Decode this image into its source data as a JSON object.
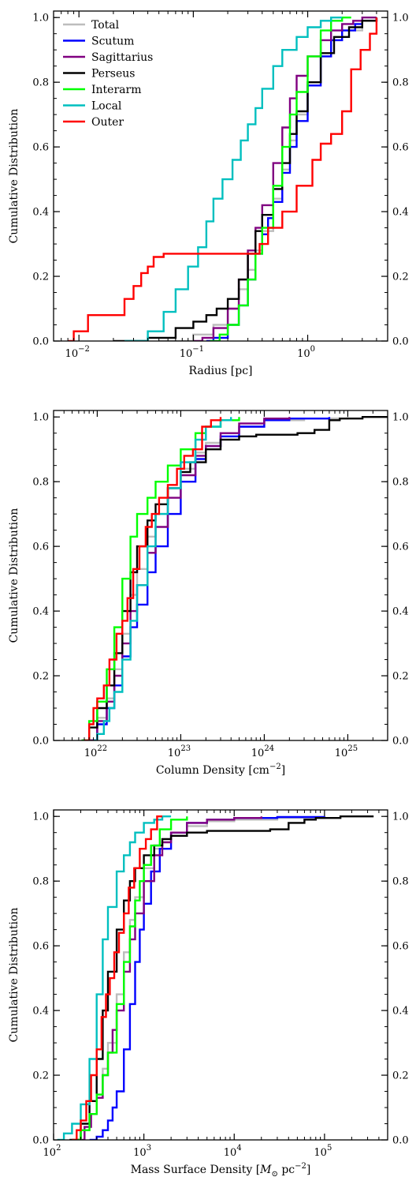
{
  "figure": {
    "ylabel": "Cumulative Distribution",
    "series_colors": {
      "Total": "#bdbdbd",
      "Scutum": "#0000ff",
      "Sagittarius": "#800080",
      "Perseus": "#000000",
      "Interarm": "#00ff00",
      "Local": "#00bfbf",
      "Outer": "#ff0000"
    }
  },
  "chart_data": [
    {
      "type": "line",
      "xlabel": "Radius [pc]",
      "ylabel": "Cumulative Distribution",
      "xscale": "log",
      "xlim": [
        0.006,
        5
      ],
      "ylim": [
        0,
        1.02
      ],
      "x_ticks": [
        {
          "value": 0.01,
          "label": "10",
          "exp": "−2"
        },
        {
          "value": 0.1,
          "label": "10",
          "exp": "−1"
        },
        {
          "value": 1,
          "label": "10",
          "exp": "0"
        }
      ],
      "y_ticks": [
        "0.0",
        "0.2",
        "0.4",
        "0.6",
        "0.8",
        "1.0"
      ],
      "legend": {
        "position": "top-left",
        "entries": [
          "Total",
          "Scutum",
          "Sagittarius",
          "Perseus",
          "Interarm",
          "Local",
          "Outer"
        ]
      },
      "series": [
        {
          "name": "Total",
          "x": [
            0.05,
            0.1,
            0.15,
            0.2,
            0.25,
            0.3,
            0.35,
            0.4,
            0.5,
            0.6,
            0.7,
            0.8,
            1.0,
            1.3,
            1.6,
            2.0,
            3.0,
            4.0
          ],
          "y": [
            0.0,
            0.02,
            0.05,
            0.1,
            0.16,
            0.22,
            0.28,
            0.34,
            0.44,
            0.53,
            0.62,
            0.7,
            0.8,
            0.88,
            0.93,
            0.96,
            0.99,
            1.0
          ]
        },
        {
          "name": "Scutum",
          "x": [
            0.13,
            0.15,
            0.2,
            0.25,
            0.3,
            0.35,
            0.4,
            0.45,
            0.5,
            0.6,
            0.7,
            0.8,
            1.0,
            1.3,
            1.6,
            2.0,
            2.6,
            3.0,
            4.0
          ],
          "y": [
            0.0,
            0.01,
            0.05,
            0.11,
            0.19,
            0.27,
            0.33,
            0.38,
            0.43,
            0.52,
            0.6,
            0.68,
            0.79,
            0.88,
            0.93,
            0.96,
            0.98,
            0.99,
            1.0
          ]
        },
        {
          "name": "Sagittarius",
          "x": [
            0.1,
            0.12,
            0.15,
            0.2,
            0.25,
            0.3,
            0.35,
            0.4,
            0.5,
            0.6,
            0.7,
            0.8,
            1.0,
            1.3,
            1.6,
            2.0,
            2.5,
            3.0,
            4.0
          ],
          "y": [
            0.0,
            0.01,
            0.04,
            0.1,
            0.19,
            0.28,
            0.35,
            0.42,
            0.55,
            0.66,
            0.75,
            0.82,
            0.88,
            0.93,
            0.96,
            0.98,
            0.99,
            1.0,
            1.0
          ]
        },
        {
          "name": "Perseus",
          "x": [
            0.02,
            0.04,
            0.07,
            0.1,
            0.13,
            0.16,
            0.2,
            0.25,
            0.3,
            0.35,
            0.4,
            0.5,
            0.6,
            0.7,
            0.8,
            1.0,
            1.3,
            1.7,
            2.3,
            3.0,
            4.0
          ],
          "y": [
            0.0,
            0.01,
            0.04,
            0.06,
            0.08,
            0.1,
            0.13,
            0.19,
            0.27,
            0.34,
            0.39,
            0.47,
            0.55,
            0.64,
            0.71,
            0.8,
            0.89,
            0.94,
            0.97,
            0.99,
            1.0
          ]
        },
        {
          "name": "Interarm",
          "x": [
            0.14,
            0.17,
            0.2,
            0.25,
            0.3,
            0.35,
            0.4,
            0.5,
            0.6,
            0.7,
            0.8,
            1.0,
            1.3,
            1.6,
            2.0,
            2.4
          ],
          "y": [
            0.0,
            0.02,
            0.05,
            0.11,
            0.19,
            0.27,
            0.35,
            0.48,
            0.6,
            0.7,
            0.77,
            0.88,
            0.96,
            0.99,
            1.0,
            1.0
          ]
        },
        {
          "name": "Local",
          "x": [
            0.025,
            0.04,
            0.055,
            0.07,
            0.09,
            0.11,
            0.13,
            0.15,
            0.18,
            0.22,
            0.26,
            0.3,
            0.35,
            0.4,
            0.5,
            0.6,
            0.8,
            1.0,
            1.3,
            1.6,
            2.0
          ],
          "y": [
            0.0,
            0.03,
            0.09,
            0.16,
            0.23,
            0.29,
            0.37,
            0.44,
            0.5,
            0.56,
            0.62,
            0.67,
            0.72,
            0.78,
            0.85,
            0.9,
            0.94,
            0.97,
            0.99,
            1.0,
            1.0
          ]
        },
        {
          "name": "Outer",
          "x": [
            0.008,
            0.009,
            0.012,
            0.02,
            0.025,
            0.03,
            0.035,
            0.04,
            0.045,
            0.05,
            0.055,
            0.36,
            0.38,
            0.45,
            0.6,
            0.8,
            1.1,
            1.3,
            1.6,
            2.0,
            2.4,
            2.9,
            3.5,
            4.0
          ],
          "y": [
            0.0,
            0.03,
            0.08,
            0.08,
            0.13,
            0.17,
            0.21,
            0.23,
            0.26,
            0.26,
            0.27,
            0.27,
            0.3,
            0.35,
            0.4,
            0.48,
            0.56,
            0.61,
            0.64,
            0.71,
            0.84,
            0.9,
            0.95,
            1.0
          ]
        }
      ]
    },
    {
      "type": "line",
      "xlabel": "Column Density [cm",
      "xlabel_sup": "−2",
      "xlabel_tail": "]",
      "ylabel": "Cumulative Distribution",
      "xscale": "log",
      "xlim": [
        3e+21,
        3e+25
      ],
      "ylim": [
        0,
        1.02
      ],
      "x_ticks": [
        {
          "value": 1e+22,
          "label": "10",
          "exp": "22"
        },
        {
          "value": 1e+23,
          "label": "10",
          "exp": "23"
        },
        {
          "value": 1e+24,
          "label": "10",
          "exp": "24"
        },
        {
          "value": 1e+25,
          "label": "10",
          "exp": "25"
        }
      ],
      "y_ticks": [
        "0.0",
        "0.2",
        "0.4",
        "0.6",
        "0.8",
        "1.0"
      ],
      "series": [
        {
          "name": "Total",
          "x": [
            7e+21,
            1e+22,
            1.3e+22,
            1.6e+22,
            2e+22,
            2.5e+22,
            3e+22,
            4e+22,
            5e+22,
            7e+22,
            1e+23,
            1.5e+23,
            2e+23,
            3e+23,
            5e+23,
            1e+24,
            3e+24,
            1e+25
          ],
          "y": [
            0.0,
            0.07,
            0.13,
            0.22,
            0.33,
            0.45,
            0.53,
            0.63,
            0.7,
            0.78,
            0.84,
            0.89,
            0.92,
            0.95,
            0.97,
            0.99,
            0.995,
            1.0
          ]
        },
        {
          "name": "Scutum",
          "x": [
            8e+21,
            1e+22,
            1.3e+22,
            1.6e+22,
            2e+22,
            2.5e+22,
            3e+22,
            4e+22,
            5e+22,
            7e+22,
            1e+23,
            1.5e+23,
            2e+23,
            3e+23,
            5e+23,
            1e+24,
            2e+24,
            6e+24
          ],
          "y": [
            0.0,
            0.05,
            0.1,
            0.17,
            0.26,
            0.35,
            0.42,
            0.52,
            0.6,
            0.7,
            0.8,
            0.87,
            0.91,
            0.94,
            0.97,
            0.99,
            0.995,
            1.0
          ]
        },
        {
          "name": "Sagittarius",
          "x": [
            7.5e+21,
            1e+22,
            1.3e+22,
            1.6e+22,
            2e+22,
            2.5e+22,
            3e+22,
            4e+22,
            5e+22,
            7e+22,
            1e+23,
            1.5e+23,
            2e+23,
            3e+23,
            5e+23,
            1e+24,
            2e+24
          ],
          "y": [
            0.0,
            0.06,
            0.12,
            0.2,
            0.3,
            0.4,
            0.48,
            0.58,
            0.66,
            0.75,
            0.82,
            0.88,
            0.91,
            0.95,
            0.98,
            0.995,
            1.0
          ]
        },
        {
          "name": "Perseus",
          "x": [
            6.5e+21,
            8e+21,
            1e+22,
            1.3e+22,
            1.6e+22,
            2e+22,
            2.5e+22,
            3e+22,
            4e+22,
            5e+22,
            7e+22,
            1e+23,
            1.3e+23,
            2e+23,
            3e+23,
            5e+23,
            8e+23,
            1.5e+24,
            2.5e+24,
            4e+24,
            6e+24,
            8e+24,
            1.5e+25,
            3e+25
          ],
          "y": [
            0.0,
            0.04,
            0.1,
            0.17,
            0.27,
            0.4,
            0.52,
            0.6,
            0.68,
            0.73,
            0.78,
            0.83,
            0.86,
            0.9,
            0.93,
            0.94,
            0.945,
            0.945,
            0.95,
            0.96,
            0.99,
            0.995,
            1.0,
            1.0
          ]
        },
        {
          "name": "Interarm",
          "x": [
            6.5e+21,
            8e+21,
            1e+22,
            1.3e+22,
            1.6e+22,
            2e+22,
            2.5e+22,
            3e+22,
            4e+22,
            5e+22,
            7e+22,
            1e+23,
            1.5e+23,
            2e+23,
            3e+23,
            5e+23
          ],
          "y": [
            0.0,
            0.06,
            0.12,
            0.22,
            0.35,
            0.5,
            0.63,
            0.7,
            0.75,
            0.8,
            0.85,
            0.9,
            0.95,
            0.97,
            0.99,
            1.0
          ]
        },
        {
          "name": "Local",
          "x": [
            9e+21,
            1e+22,
            1.2e+22,
            1.4e+22,
            1.6e+22,
            2e+22,
            2.5e+22,
            3e+22,
            4e+22,
            5e+22,
            7e+22,
            1e+23,
            1.5e+23,
            2e+23,
            3e+23,
            4e+23
          ],
          "y": [
            0.0,
            0.02,
            0.06,
            0.1,
            0.15,
            0.25,
            0.37,
            0.48,
            0.6,
            0.7,
            0.78,
            0.86,
            0.93,
            0.97,
            0.99,
            1.0
          ]
        },
        {
          "name": "Outer",
          "x": [
            7e+21,
            8e+21,
            9e+21,
            1e+22,
            1.2e+22,
            1.4e+22,
            1.7e+22,
            2e+22,
            2.3e+22,
            2.7e+22,
            3.2e+22,
            3.8e+22,
            4.5e+22,
            5.5e+22,
            7e+22,
            9e+22,
            1.1e+23,
            1.4e+23,
            1.8e+23,
            2.3e+23,
            3e+23
          ],
          "y": [
            0.0,
            0.05,
            0.1,
            0.13,
            0.17,
            0.25,
            0.33,
            0.37,
            0.44,
            0.53,
            0.6,
            0.66,
            0.7,
            0.75,
            0.79,
            0.84,
            0.88,
            0.9,
            0.97,
            0.99,
            1.0
          ]
        }
      ]
    },
    {
      "type": "line",
      "xlabel": "Mass Surface Density [",
      "xlabel_math": "M",
      "xlabel_sub": "⊙",
      "xlabel_unit": " pc",
      "xlabel_sup": "−2",
      "xlabel_tail": "]",
      "ylabel": "Cumulative Distribution",
      "xscale": "log",
      "xlim": [
        100,
        500000
      ],
      "ylim": [
        0,
        1.02
      ],
      "x_ticks": [
        {
          "value": 100,
          "label": "10",
          "exp": "2"
        },
        {
          "value": 1000,
          "label": "10",
          "exp": "3"
        },
        {
          "value": 10000,
          "label": "10",
          "exp": "4"
        },
        {
          "value": 100000,
          "label": "10",
          "exp": "5"
        }
      ],
      "y_ticks": [
        "0.0",
        "0.2",
        "0.4",
        "0.6",
        "0.8",
        "1.0"
      ],
      "series": [
        {
          "name": "Total",
          "x": [
            160,
            200,
            250,
            300,
            350,
            400,
            500,
            600,
            700,
            800,
            1000,
            1300,
            1600,
            2000,
            3000,
            5000,
            10000,
            30000,
            100000
          ],
          "y": [
            0.0,
            0.03,
            0.08,
            0.14,
            0.22,
            0.3,
            0.45,
            0.58,
            0.68,
            0.75,
            0.84,
            0.9,
            0.93,
            0.95,
            0.97,
            0.985,
            0.99,
            0.995,
            1.0
          ]
        },
        {
          "name": "Scutum",
          "x": [
            250,
            300,
            350,
            400,
            450,
            500,
            600,
            700,
            800,
            900,
            1000,
            1200,
            1500,
            2000,
            3000,
            5000,
            10000,
            30000,
            100000
          ],
          "y": [
            0.0,
            0.01,
            0.03,
            0.06,
            0.1,
            0.15,
            0.28,
            0.42,
            0.55,
            0.65,
            0.73,
            0.83,
            0.9,
            0.95,
            0.98,
            0.99,
            0.995,
            0.998,
            1.0
          ]
        },
        {
          "name": "Sagittarius",
          "x": [
            180,
            220,
            260,
            300,
            350,
            400,
            450,
            500,
            600,
            700,
            800,
            1000,
            1300,
            1600,
            2000,
            3000,
            5000,
            10000,
            20000
          ],
          "y": [
            0.0,
            0.04,
            0.08,
            0.13,
            0.2,
            0.27,
            0.34,
            0.4,
            0.52,
            0.62,
            0.7,
            0.8,
            0.88,
            0.92,
            0.95,
            0.98,
            0.99,
            0.995,
            1.0
          ]
        },
        {
          "name": "Perseus",
          "x": [
            150,
            200,
            250,
            300,
            350,
            400,
            500,
            600,
            700,
            800,
            1000,
            1300,
            1600,
            2000,
            3000,
            5000,
            8000,
            15000,
            25000,
            40000,
            60000,
            80000,
            150000,
            350000
          ],
          "y": [
            0.0,
            0.05,
            0.12,
            0.25,
            0.4,
            0.52,
            0.65,
            0.74,
            0.8,
            0.84,
            0.88,
            0.91,
            0.93,
            0.94,
            0.95,
            0.955,
            0.955,
            0.955,
            0.96,
            0.98,
            0.99,
            0.995,
            1.0,
            1.0
          ]
        },
        {
          "name": "Interarm",
          "x": [
            170,
            200,
            250,
            300,
            350,
            400,
            500,
            600,
            700,
            800,
            900,
            1000,
            1200,
            1500,
            2000,
            3000
          ],
          "y": [
            0.0,
            0.03,
            0.08,
            0.14,
            0.2,
            0.27,
            0.42,
            0.55,
            0.66,
            0.74,
            0.8,
            0.85,
            0.91,
            0.96,
            0.99,
            1.0
          ]
        },
        {
          "name": "Local",
          "x": [
            110,
            130,
            160,
            200,
            250,
            300,
            350,
            400,
            500,
            600,
            700,
            800,
            1000,
            1300,
            1600,
            2000
          ],
          "y": [
            0.0,
            0.02,
            0.05,
            0.11,
            0.25,
            0.45,
            0.62,
            0.72,
            0.83,
            0.88,
            0.92,
            0.95,
            0.98,
            0.99,
            1.0,
            1.0
          ]
        },
        {
          "name": "Outer",
          "x": [
            160,
            180,
            200,
            230,
            260,
            300,
            340,
            380,
            420,
            470,
            530,
            600,
            680,
            780,
            900,
            1050,
            1200,
            1400,
            1600
          ],
          "y": [
            0.0,
            0.03,
            0.06,
            0.12,
            0.2,
            0.28,
            0.38,
            0.45,
            0.5,
            0.58,
            0.64,
            0.7,
            0.78,
            0.84,
            0.9,
            0.93,
            0.96,
            1.0,
            1.0
          ]
        }
      ]
    }
  ]
}
